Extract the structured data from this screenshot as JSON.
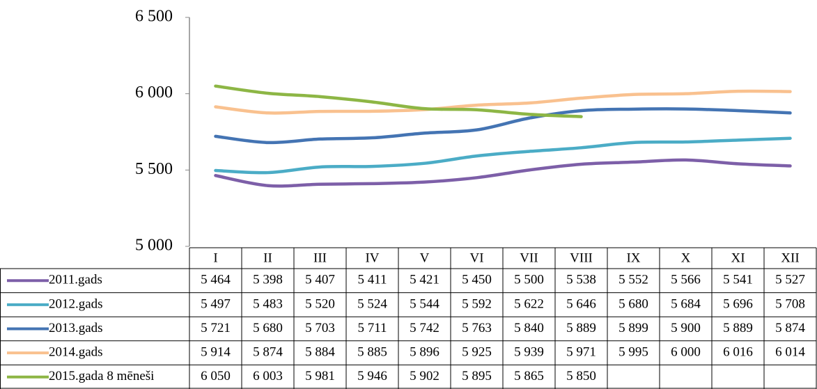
{
  "chart_data": {
    "type": "line",
    "categories": [
      "I",
      "II",
      "III",
      "IV",
      "V",
      "VI",
      "VII",
      "VIII",
      "IX",
      "X",
      "XI",
      "XII"
    ],
    "ylim": [
      5000,
      6500
    ],
    "yticks": [
      {
        "value": 5000,
        "label": "5 000"
      },
      {
        "value": 5500,
        "label": "5 500"
      },
      {
        "value": 6000,
        "label": "6 000"
      },
      {
        "value": 6500,
        "label": "6 500"
      }
    ],
    "grid": false,
    "series": [
      {
        "name": "2011.gads",
        "color": "#7d5fa8",
        "values": [
          5464,
          5398,
          5407,
          5411,
          5421,
          5450,
          5500,
          5538,
          5552,
          5566,
          5541,
          5527
        ],
        "value_labels": [
          "5 464",
          "5 398",
          "5 407",
          "5 411",
          "5 421",
          "5 450",
          "5 500",
          "5 538",
          "5 552",
          "5 566",
          "5 541",
          "5 527"
        ]
      },
      {
        "name": "2012.gads",
        "color": "#4bacc6",
        "values": [
          5497,
          5483,
          5520,
          5524,
          5544,
          5592,
          5622,
          5646,
          5680,
          5684,
          5696,
          5708
        ],
        "value_labels": [
          "5 497",
          "5 483",
          "5 520",
          "5 524",
          "5 544",
          "5 592",
          "5 622",
          "5 646",
          "5 680",
          "5 684",
          "5 696",
          "5 708"
        ]
      },
      {
        "name": "2013.gads",
        "color": "#4474b3",
        "values": [
          5721,
          5680,
          5703,
          5711,
          5742,
          5763,
          5840,
          5889,
          5899,
          5900,
          5889,
          5874
        ],
        "value_labels": [
          "5 721",
          "5 680",
          "5 703",
          "5 711",
          "5 742",
          "5 763",
          "5 840",
          "5 889",
          "5 899",
          "5 900",
          "5 889",
          "5 874"
        ]
      },
      {
        "name": "2014.gads",
        "color": "#f9c18f",
        "values": [
          5914,
          5874,
          5884,
          5885,
          5896,
          5925,
          5939,
          5971,
          5995,
          6000,
          6016,
          6014
        ],
        "value_labels": [
          "5 914",
          "5 874",
          "5 884",
          "5 885",
          "5 896",
          "5 925",
          "5 939",
          "5 971",
          "5 995",
          "6 000",
          "6 016",
          "6 014"
        ]
      },
      {
        "name": "2015.gada 8 mēneši",
        "color": "#8db645",
        "values": [
          6050,
          6003,
          5981,
          5946,
          5902,
          5895,
          5865,
          5850,
          null,
          null,
          null,
          null
        ],
        "value_labels": [
          "6 050",
          "6 003",
          "5 981",
          "5 946",
          "5 902",
          "5 895",
          "5 865",
          "5 850",
          null,
          null,
          null,
          null
        ]
      }
    ]
  }
}
